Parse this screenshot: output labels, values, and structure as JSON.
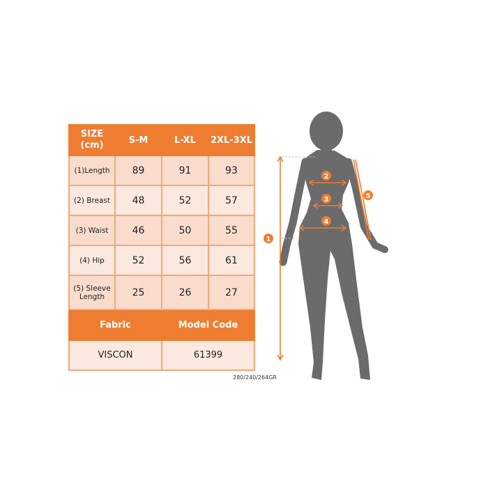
{
  "table": {
    "header": [
      "SIZE\n(cm)",
      "S-M",
      "L-XL",
      "2XL-3XL"
    ],
    "rows": [
      {
        "label": "(1)Length",
        "values": [
          "89",
          "91",
          "93"
        ]
      },
      {
        "label": "(2) Breast",
        "values": [
          "48",
          "52",
          "57"
        ]
      },
      {
        "label": "(3) Waist",
        "values": [
          "46",
          "50",
          "55"
        ]
      },
      {
        "label": "(4) Hip",
        "values": [
          "52",
          "56",
          "61"
        ]
      },
      {
        "label": "(5) Sleeve Length",
        "values": [
          "25",
          "26",
          "27"
        ]
      }
    ],
    "footer_header": [
      "Fabric",
      "Model Code"
    ],
    "footer_values": [
      "VISCON",
      "61399"
    ]
  },
  "note": "280/240/264GR",
  "markers": [
    "1",
    "2",
    "3",
    "4",
    "5"
  ],
  "colors": {
    "accent": "#ee7d31",
    "silhouette": "#6b6b6b",
    "cell_dark": "#f9dccc",
    "cell_light": "#fbe8de"
  }
}
